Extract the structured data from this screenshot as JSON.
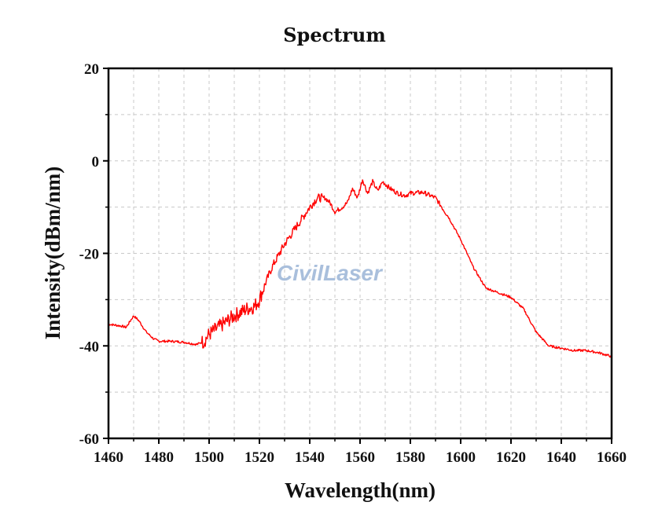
{
  "chart_data": {
    "type": "line",
    "title": "Spectrum",
    "xlabel": "Wavelength(nm)",
    "ylabel": "Intensity(dBm/nm)",
    "xlim": [
      1460,
      1660
    ],
    "ylim": [
      -60,
      20
    ],
    "xticks": [
      1460,
      1480,
      1500,
      1520,
      1540,
      1560,
      1580,
      1600,
      1620,
      1640,
      1660
    ],
    "yticks": [
      20,
      0,
      -20,
      -40,
      -60
    ],
    "grid": true,
    "legend": "none",
    "series": [
      {
        "color": "#ff0000",
        "x": [
          1460,
          1465,
          1467,
          1470,
          1472,
          1475,
          1478,
          1480,
          1485,
          1490,
          1495,
          1498,
          1500,
          1505,
          1510,
          1515,
          1518,
          1520,
          1522,
          1525,
          1530,
          1535,
          1540,
          1543,
          1546,
          1548,
          1550,
          1553,
          1555,
          1557,
          1559,
          1561,
          1563,
          1565,
          1567,
          1569,
          1572,
          1575,
          1578,
          1580,
          1585,
          1590,
          1595,
          1600,
          1605,
          1610,
          1615,
          1620,
          1625,
          1630,
          1635,
          1640,
          1645,
          1650,
          1655,
          1660
        ],
        "y": [
          -35.3,
          -35.7,
          -36,
          -33.5,
          -34.5,
          -37,
          -38.5,
          -39,
          -39,
          -39.2,
          -39.7,
          -39,
          -37.5,
          -35.5,
          -33.5,
          -32,
          -31.5,
          -30,
          -27,
          -23,
          -18,
          -14,
          -10,
          -8,
          -8,
          -9,
          -11,
          -10,
          -9,
          -6,
          -8,
          -4,
          -7,
          -4.5,
          -6.5,
          -4.5,
          -6,
          -7,
          -7.5,
          -7,
          -6.8,
          -8,
          -12,
          -17,
          -23,
          -27.5,
          -28.5,
          -29.5,
          -32,
          -37,
          -40,
          -40.5,
          -41,
          -41,
          -41.5,
          -42.3
        ]
      }
    ],
    "watermark": "CivilLaser"
  }
}
